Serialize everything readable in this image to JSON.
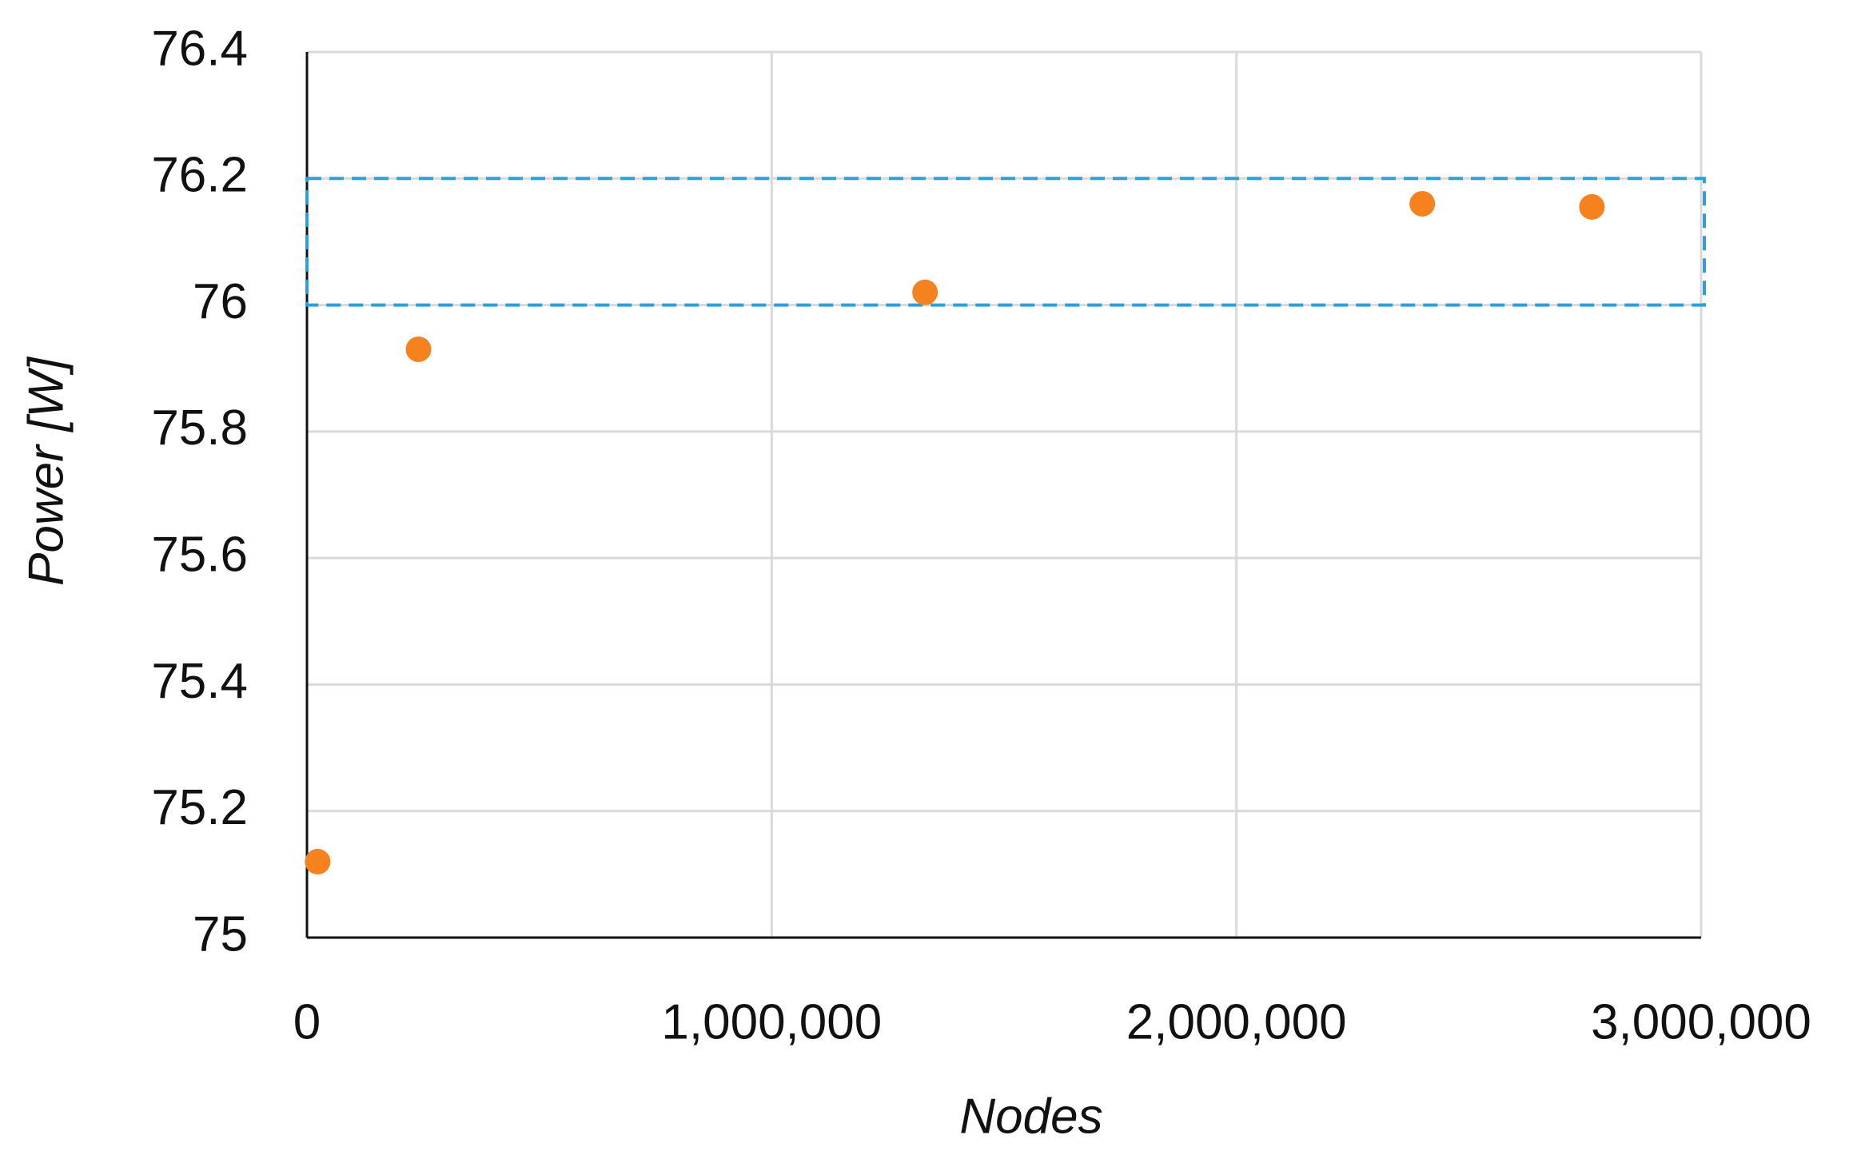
{
  "chart_data": {
    "type": "scatter",
    "x_label": "Nodes",
    "y_label": "Power [W]",
    "series": [
      {
        "color": "#f5821f",
        "x": [
          23000,
          240000,
          1330000,
          2400000,
          2765000
        ],
        "values": [
          75.12,
          75.93,
          76.02,
          76.16,
          76.155
        ]
      }
    ],
    "xlim": [
      0,
      3000000
    ],
    "xticks": [
      0,
      {
        "value": 1000000,
        "label": "1,000,000"
      },
      {
        "value": 2000000,
        "label": "2,000,000"
      },
      {
        "value": 3000000,
        "label": "3,000,000"
      }
    ],
    "ylim": [
      75,
      76.4
    ],
    "yticks": [
      75,
      75.2,
      75.4,
      75.6,
      75.8,
      76,
      76.2,
      76.4
    ],
    "grid": true,
    "highlight": {
      "xlim": [
        0,
        3000000
      ],
      "ylim": [
        76,
        76.2
      ],
      "color": "#2e9fd8"
    }
  }
}
